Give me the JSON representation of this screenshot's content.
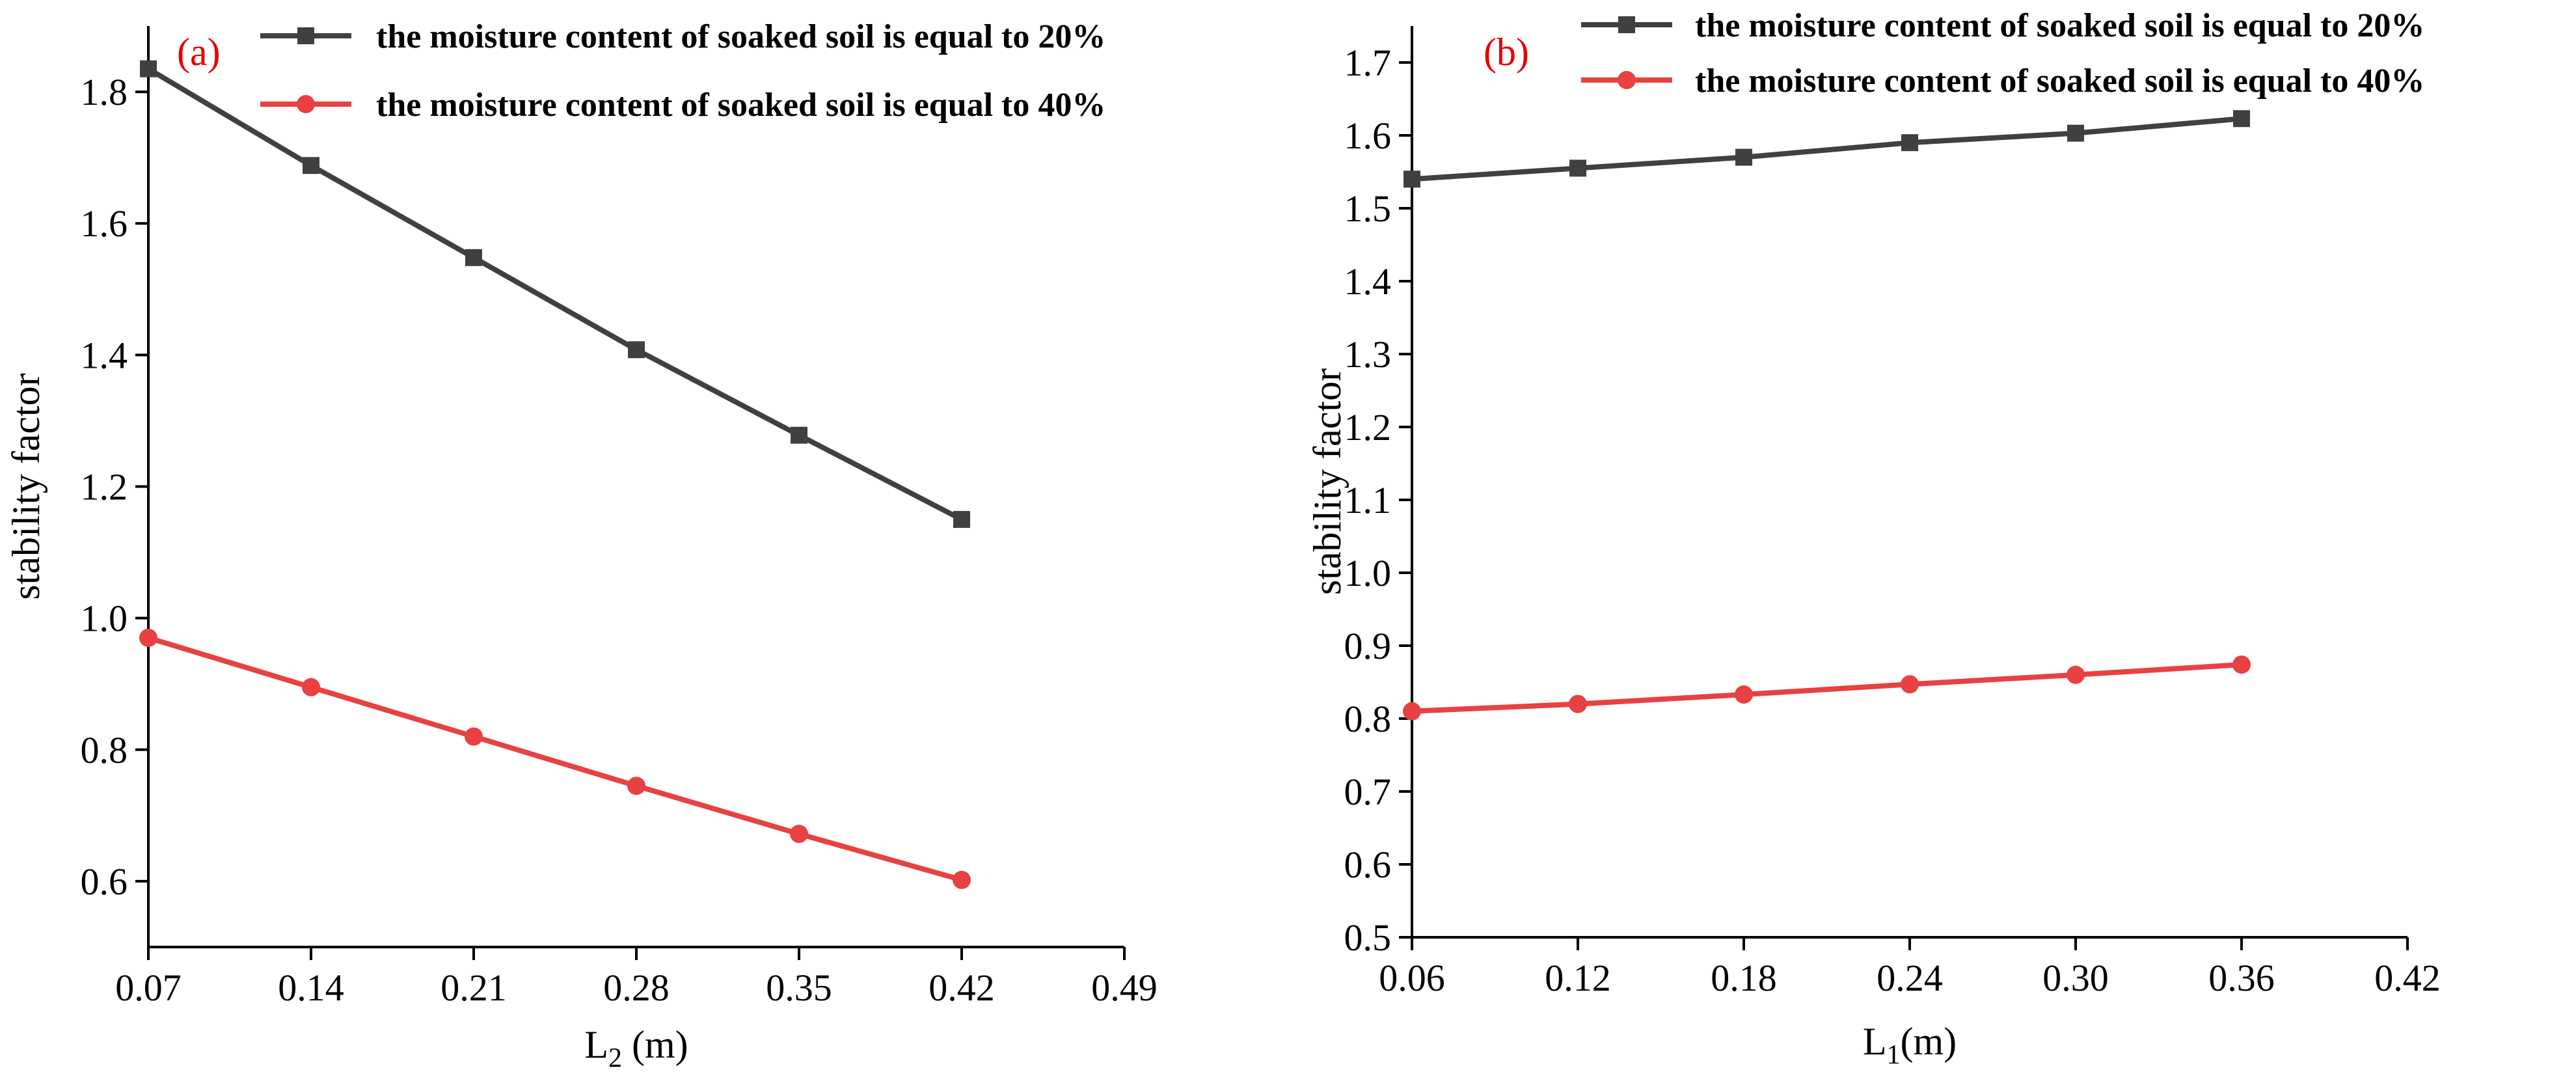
{
  "colors": {
    "series_a": "#404040",
    "series_b": "#e84141"
  },
  "chart_data": [
    {
      "type": "line",
      "panel_label": "(a)",
      "xlabel_main": "L",
      "xlabel_sub": "2",
      "xlabel_unit": " (m)",
      "ylabel": "stability factor",
      "x": [
        0.07,
        0.14,
        0.21,
        0.28,
        0.35,
        0.42
      ],
      "xlim": [
        0.07,
        0.49
      ],
      "ylim": [
        0.5,
        1.9
      ],
      "xticks": [
        "0.07",
        "0.14",
        "0.21",
        "0.28",
        "0.35",
        "0.42",
        "0.49"
      ],
      "yticks": [
        "0.6",
        "0.8",
        "1.0",
        "1.2",
        "1.4",
        "1.6",
        "1.8"
      ],
      "legend_position": "top-right",
      "series": [
        {
          "name": "the moisture content of soaked soil is equal to 20%",
          "marker": "square",
          "values": [
            1.835,
            1.688,
            1.548,
            1.408,
            1.278,
            1.15
          ]
        },
        {
          "name": "the moisture content of soaked soil is equal to 40%",
          "marker": "circle",
          "values": [
            0.97,
            0.895,
            0.82,
            0.745,
            0.672,
            0.602
          ]
        }
      ]
    },
    {
      "type": "line",
      "panel_label": "(b)",
      "xlabel_main": "L",
      "xlabel_sub": "1",
      "xlabel_unit": "(m)",
      "ylabel": "stability factor",
      "x": [
        0.06,
        0.12,
        0.18,
        0.24,
        0.3,
        0.36
      ],
      "xlim": [
        0.06,
        0.42
      ],
      "ylim": [
        0.5,
        1.75
      ],
      "xticks": [
        "0.06",
        "0.12",
        "0.18",
        "0.24",
        "0.30",
        "0.36",
        "0.42"
      ],
      "yticks": [
        "0.5",
        "0.6",
        "0.7",
        "0.8",
        "0.9",
        "1.0",
        "1.1",
        "1.2",
        "1.3",
        "1.4",
        "1.5",
        "1.6",
        "1.7"
      ],
      "legend_position": "top-right",
      "series": [
        {
          "name": "the moisture content of soaked soil is equal to 20%",
          "marker": "square",
          "values": [
            1.54,
            1.555,
            1.57,
            1.59,
            1.603,
            1.623
          ]
        },
        {
          "name": "the moisture content of soaked soil is equal to 40%",
          "marker": "circle",
          "values": [
            0.81,
            0.82,
            0.833,
            0.847,
            0.86,
            0.874
          ]
        }
      ]
    }
  ]
}
